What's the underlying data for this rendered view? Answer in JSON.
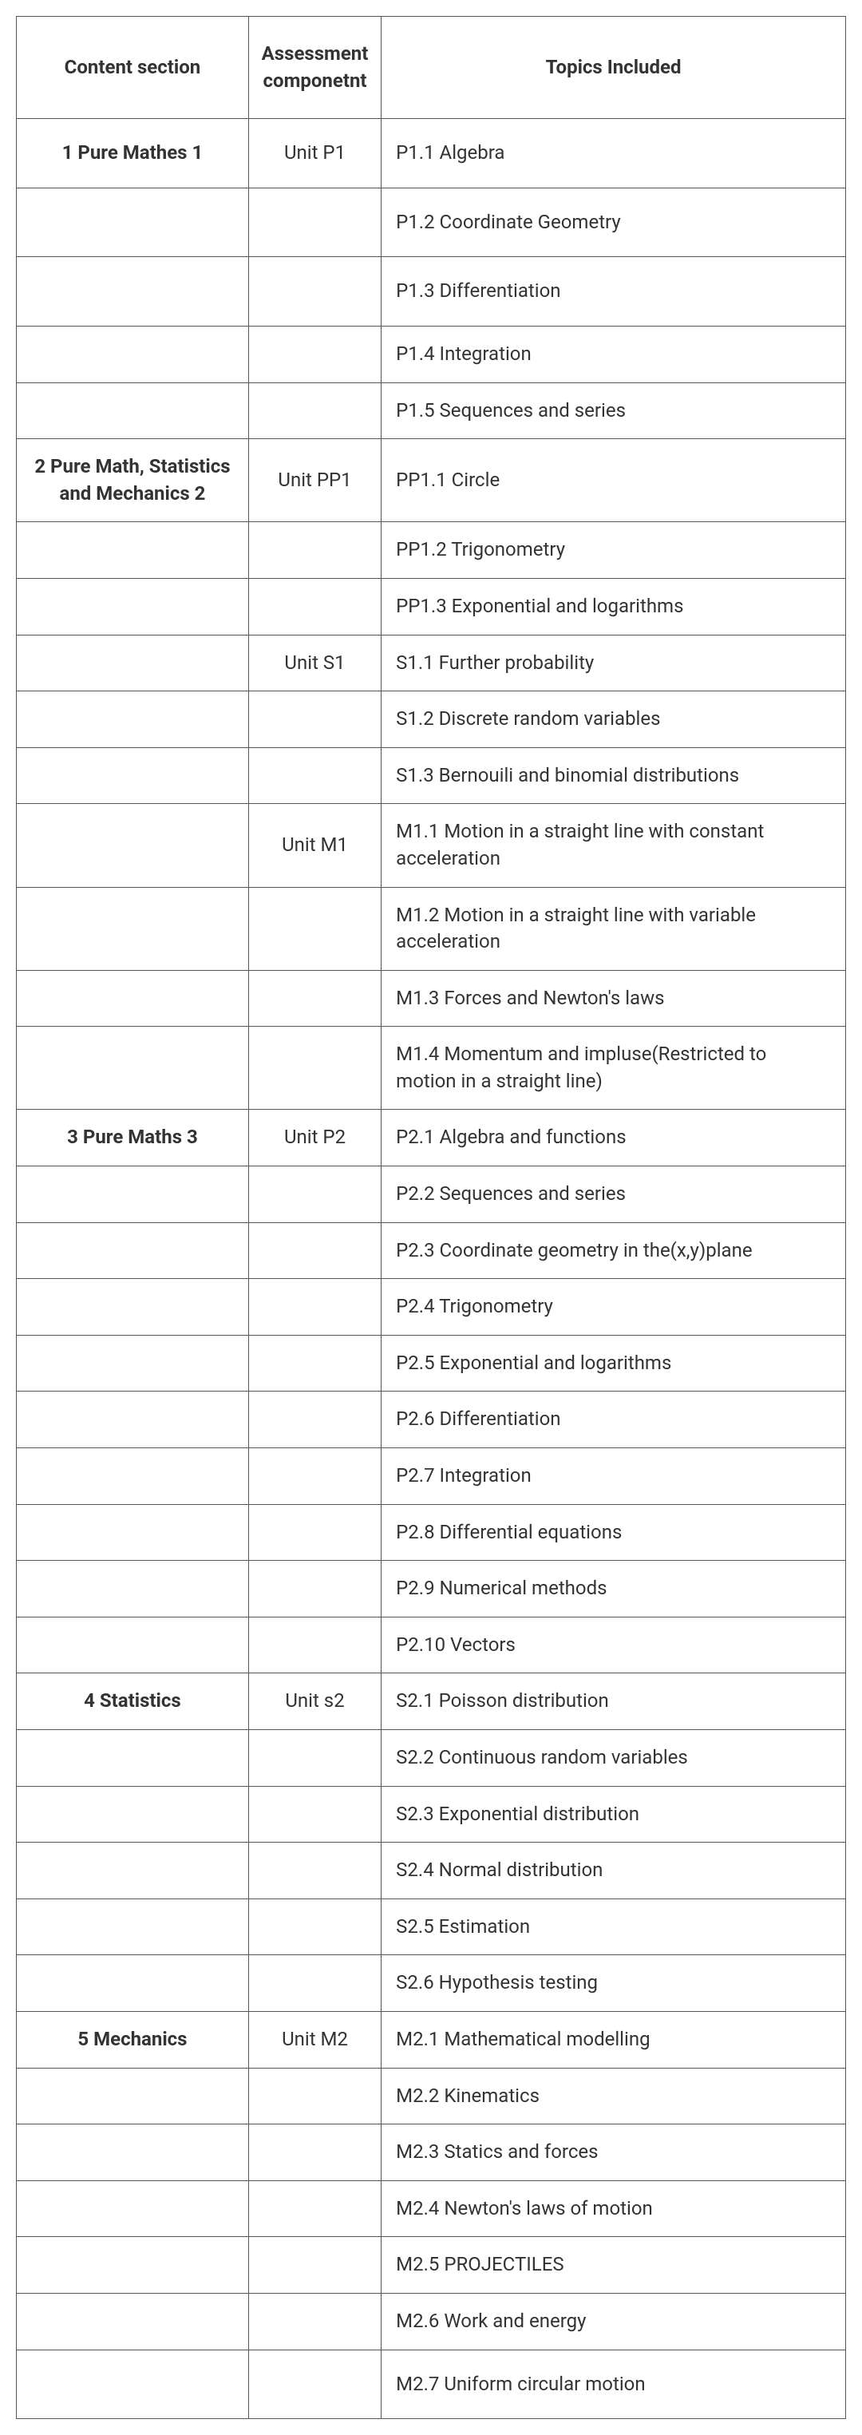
{
  "table": {
    "border_color": "#555555",
    "background_color": "#ffffff",
    "text_color": "#333333",
    "header_fontsize": 24,
    "body_fontsize": 24,
    "columns": [
      {
        "label": "Content section",
        "width_pct": 28,
        "align": "center",
        "bold": true
      },
      {
        "label": "Assessment componetnt",
        "width_pct": 16,
        "align": "center",
        "bold": true
      },
      {
        "label": "Topics Included",
        "width_pct": 56,
        "align": "center",
        "bold": true
      }
    ],
    "rows": [
      {
        "section": "1  Pure Mathes 1",
        "unit": "Unit P1",
        "topic": "P1.1  Algebra",
        "tall": true
      },
      {
        "section": "",
        "unit": "",
        "topic": "P1.2  Coordinate Geometry",
        "tall": true
      },
      {
        "section": "",
        "unit": "",
        "topic": "P1.3  Differentiation",
        "tall": true
      },
      {
        "section": "",
        "unit": "",
        "topic": "P1.4  Integration"
      },
      {
        "section": "",
        "unit": "",
        "topic": "P1.5  Sequences and series"
      },
      {
        "section": "2  Pure Math, Statistics and Mechanics 2",
        "unit": "Unit PP1",
        "topic": "PP1.1  Circle"
      },
      {
        "section": "",
        "unit": "",
        "topic": "PP1.2  Trigonometry"
      },
      {
        "section": "",
        "unit": "",
        "topic": "PP1.3 Exponential and logarithms"
      },
      {
        "section": "",
        "unit": "Unit S1",
        "topic": "S1.1  Further probability"
      },
      {
        "section": "",
        "unit": "",
        "topic": "S1.2  Discrete random variables"
      },
      {
        "section": "",
        "unit": "",
        "topic": "S1.3  Bernouili and binomial distributions"
      },
      {
        "section": "",
        "unit": "Unit M1",
        "topic": "M1.1  Motion in a straight line with constant acceleration"
      },
      {
        "section": "",
        "unit": "",
        "topic": "M1.2  Motion in a straight line with variable acceleration"
      },
      {
        "section": "",
        "unit": "",
        "topic": "M1.3  Forces and Newton's laws"
      },
      {
        "section": "",
        "unit": "",
        "topic": "M1.4  Momentum and impluse(Restricted to motion in a straight line)"
      },
      {
        "section": "3  Pure Maths 3",
        "unit": "Unit P2",
        "topic": "P2.1  Algebra and functions"
      },
      {
        "section": "",
        "unit": "",
        "topic": "P2.2  Sequences and series"
      },
      {
        "section": "",
        "unit": "",
        "topic": "P2.3  Coordinate geometry in the(x,y)plane"
      },
      {
        "section": "",
        "unit": "",
        "topic": "P2.4  Trigonometry"
      },
      {
        "section": "",
        "unit": "",
        "topic": "P2.5  Exponential and logarithms"
      },
      {
        "section": "",
        "unit": "",
        "topic": "P2.6  Differentiation"
      },
      {
        "section": "",
        "unit": "",
        "topic": "P2.7  Integration"
      },
      {
        "section": "",
        "unit": "",
        "topic": "P2.8  Differential equations"
      },
      {
        "section": "",
        "unit": "",
        "topic": "P2.9  Numerical methods"
      },
      {
        "section": "",
        "unit": "",
        "topic": "P2.10  Vectors"
      },
      {
        "section": "4  Statistics",
        "unit": "Unit s2",
        "topic": "S2.1  Poisson distribution"
      },
      {
        "section": "",
        "unit": "",
        "topic": "S2.2  Continuous random variables"
      },
      {
        "section": "",
        "unit": "",
        "topic": "S2.3  Exponential distribution"
      },
      {
        "section": "",
        "unit": "",
        "topic": "S2.4  Normal distribution"
      },
      {
        "section": "",
        "unit": "",
        "topic": "S2.5  Estimation"
      },
      {
        "section": "",
        "unit": "",
        "topic": "S2.6  Hypothesis testing"
      },
      {
        "section": "5  Mechanics",
        "unit": "Unit M2",
        "topic": "M2.1  Mathematical modelling"
      },
      {
        "section": "",
        "unit": "",
        "topic": "M2.2  Kinematics"
      },
      {
        "section": "",
        "unit": "",
        "topic": "M2.3  Statics and forces"
      },
      {
        "section": "",
        "unit": "",
        "topic": "M2.4  Newton's laws of motion"
      },
      {
        "section": "",
        "unit": "",
        "topic": "M2.5  PROJECTILES"
      },
      {
        "section": "",
        "unit": "",
        "topic": "M2.6  Work and energy"
      },
      {
        "section": "",
        "unit": "",
        "topic": "M2.7  Uniform circular motion",
        "tall": true
      }
    ]
  }
}
